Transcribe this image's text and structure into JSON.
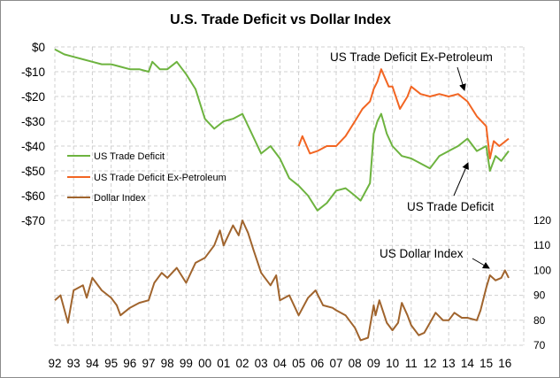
{
  "chart_data": {
    "type": "line",
    "title": "U.S. Trade Deficit vs Dollar Index",
    "x_tick_labels": [
      "92",
      "93",
      "94",
      "95",
      "96",
      "97",
      "98",
      "99",
      "00",
      "01",
      "02",
      "03",
      "04",
      "05",
      "06",
      "07",
      "08",
      "09",
      "10",
      "11",
      "12",
      "13",
      "14",
      "15",
      "16"
    ],
    "xlim": [
      1992,
      2017
    ],
    "left_axis": {
      "ylim": [
        -70,
        0
      ],
      "tick_labels": [
        "$0",
        "-$10",
        "-$20",
        "-$30",
        "-$40",
        "-$50",
        "-$60",
        "-$70"
      ],
      "ticks": [
        0,
        -10,
        -20,
        -30,
        -40,
        -50,
        -60,
        -70
      ]
    },
    "right_axis": {
      "ylim": [
        70,
        120
      ],
      "tick_labels": [
        "120",
        "110",
        "100",
        "90",
        "80",
        "70"
      ],
      "ticks": [
        120,
        110,
        100,
        90,
        80,
        70
      ]
    },
    "grid": true,
    "legend_position": "left-middle",
    "series": [
      {
        "name": "US Trade Deficit",
        "axis": "left",
        "color": "#6db33f",
        "x": [
          1992,
          1992.5,
          1993,
          1993.5,
          1994,
          1994.5,
          1995,
          1995.5,
          1996,
          1996.5,
          1997,
          1997.2,
          1997.6,
          1998,
          1998.5,
          1999,
          1999.5,
          2000,
          2000.5,
          2001,
          2001.5,
          2002,
          2002.5,
          2003,
          2003.5,
          2004,
          2004.5,
          2005,
          2005.5,
          2006,
          2006.5,
          2007,
          2007.5,
          2008,
          2008.3,
          2008.8,
          2009,
          2009.2,
          2009.4,
          2009.7,
          2010,
          2010.5,
          2011,
          2011.5,
          2012,
          2012.5,
          2013,
          2013.5,
          2014,
          2014.5,
          2015,
          2015.2,
          2015.5,
          2015.8,
          2016.2
        ],
        "y": [
          -1,
          -3,
          -4,
          -5,
          -6,
          -7,
          -7,
          -8,
          -9,
          -9,
          -10,
          -6,
          -9,
          -9,
          -6,
          -11,
          -17,
          -29,
          -33,
          -30,
          -29,
          -27,
          -35,
          -43,
          -40,
          -45,
          -53,
          -56,
          -60,
          -66,
          -63,
          -58,
          -57,
          -60,
          -62,
          -55,
          -35,
          -30,
          -27,
          -35,
          -40,
          -44,
          -45,
          -47,
          -49,
          -44,
          -42,
          -40,
          -37,
          -42,
          -40,
          -50,
          -44,
          -46,
          -42
        ]
      },
      {
        "name": "US Trade Deficit Ex-Petroleum",
        "axis": "left",
        "color": "#f26522",
        "x": [
          2005,
          2005.2,
          2005.6,
          2006,
          2006.5,
          2007,
          2007.5,
          2008,
          2008.4,
          2008.8,
          2009,
          2009.2,
          2009.4,
          2009.8,
          2010,
          2010.4,
          2010.8,
          2011,
          2011.5,
          2012,
          2012.5,
          2013,
          2013.5,
          2014,
          2014.5,
          2015,
          2015.2,
          2015.4,
          2015.7,
          2016.2
        ],
        "y": [
          -40,
          -36,
          -43,
          -42,
          -40,
          -40,
          -36,
          -30,
          -25,
          -22,
          -17,
          -14,
          -9,
          -16,
          -16,
          -25,
          -20,
          -16,
          -19,
          -20,
          -19,
          -20,
          -19,
          -22,
          -28,
          -32,
          -45,
          -38,
          -40,
          -37
        ]
      },
      {
        "name": "Dollar Index",
        "axis": "right",
        "color": "#a0642d",
        "x": [
          1992,
          1992.3,
          1992.7,
          1993,
          1993.5,
          1993.7,
          1994,
          1994.5,
          1995,
          1995.3,
          1995.5,
          1996,
          1996.5,
          1997,
          1997.3,
          1997.7,
          1998,
          1998.5,
          1999,
          1999.5,
          2000,
          2000.5,
          2000.8,
          2001,
          2001.5,
          2001.8,
          2002,
          2002.3,
          2002.6,
          2003,
          2003.5,
          2003.8,
          2004,
          2004.5,
          2005,
          2005.5,
          2005.9,
          2006.3,
          2006.8,
          2007,
          2007.5,
          2008,
          2008.3,
          2008.7,
          2009,
          2009.1,
          2009.3,
          2009.7,
          2010,
          2010.3,
          2010.5,
          2010.8,
          2011,
          2011.4,
          2011.7,
          2012,
          2012.3,
          2012.7,
          2013,
          2013.3,
          2013.7,
          2014,
          2014.5,
          2014.7,
          2015,
          2015.2,
          2015.5,
          2015.8,
          2016,
          2016.2
        ],
        "y": [
          88,
          90,
          79,
          92,
          94,
          89,
          97,
          92,
          89,
          86,
          82,
          85,
          87,
          88,
          95,
          99,
          97,
          101,
          95,
          103,
          105,
          110,
          116,
          110,
          118,
          114,
          120,
          115,
          108,
          99,
          94,
          98,
          88,
          90,
          82,
          89,
          92,
          86,
          85,
          84,
          82,
          77,
          72,
          73,
          86,
          82,
          88,
          79,
          76,
          79,
          87,
          82,
          78,
          74,
          75,
          79,
          83,
          80,
          80,
          83,
          81,
          81,
          80,
          84,
          93,
          98,
          96,
          97,
          100,
          97
        ]
      }
    ],
    "annotations": [
      "US Trade Deficit Ex-Petroleum",
      "US Trade Deficit",
      "US Dollar Index"
    ]
  }
}
